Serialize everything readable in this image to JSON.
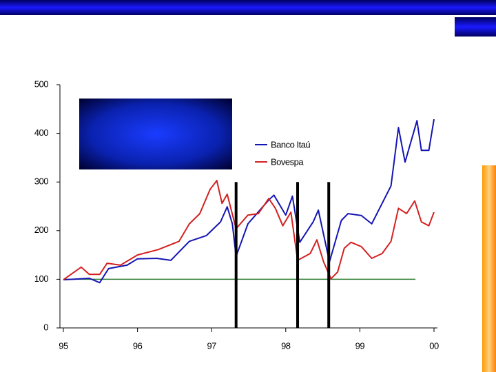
{
  "chart_data": {
    "type": "line",
    "xlim": [
      95,
      100
    ],
    "xticks": [
      95,
      96,
      97,
      98,
      99,
      {
        "value": 100,
        "label": "00"
      }
    ],
    "ylim": [
      0,
      500
    ],
    "yticks": [
      0,
      100,
      200,
      300,
      400,
      500
    ],
    "grid": false,
    "series": [
      {
        "name": "Banco Itaú",
        "color": "#1414b4",
        "x": [
          95.0,
          95.35,
          95.49,
          95.61,
          95.86,
          96.0,
          96.26,
          96.45,
          96.7,
          96.93,
          97.12,
          97.21,
          97.28,
          97.33,
          97.49,
          97.77,
          97.84,
          98.0,
          98.09,
          98.19,
          98.37,
          98.44,
          98.59,
          98.75,
          98.84,
          99.02,
          99.16,
          99.42,
          99.52,
          99.61,
          99.77,
          99.83,
          99.93,
          100.0
        ],
        "values": [
          99,
          102,
          93,
          122,
          129,
          142,
          143,
          139,
          178,
          190,
          218,
          249,
          214,
          147,
          214,
          263,
          273,
          232,
          271,
          176,
          218,
          242,
          136,
          221,
          235,
          231,
          214,
          292,
          412,
          341,
          426,
          365,
          365,
          429
        ]
      },
      {
        "name": "Bovespa",
        "color": "#d42020",
        "x": [
          95.0,
          95.24,
          95.35,
          95.49,
          95.59,
          95.77,
          96.0,
          96.28,
          96.56,
          96.7,
          96.84,
          96.98,
          97.07,
          97.14,
          97.21,
          97.33,
          97.49,
          97.63,
          97.77,
          97.86,
          97.96,
          98.07,
          98.16,
          98.33,
          98.42,
          98.51,
          98.61,
          98.7,
          98.79,
          98.88,
          99.02,
          99.16,
          99.3,
          99.42,
          99.52,
          99.63,
          99.74,
          99.83,
          99.93,
          100.0
        ],
        "values": [
          99,
          125,
          110,
          110,
          133,
          129,
          150,
          161,
          178,
          214,
          235,
          285,
          303,
          256,
          275,
          204,
          232,
          235,
          266,
          246,
          210,
          238,
          139,
          153,
          181,
          136,
          101,
          115,
          164,
          176,
          167,
          143,
          153,
          178,
          246,
          235,
          261,
          218,
          210,
          238
        ]
      }
    ],
    "hline": {
      "y": 100,
      "x": [
        95,
        99.75
      ],
      "color": "#2e7d32"
    },
    "vlines": {
      "x": [
        97.33,
        98.16,
        98.58
      ],
      "top": 300,
      "color": "#000000"
    }
  }
}
